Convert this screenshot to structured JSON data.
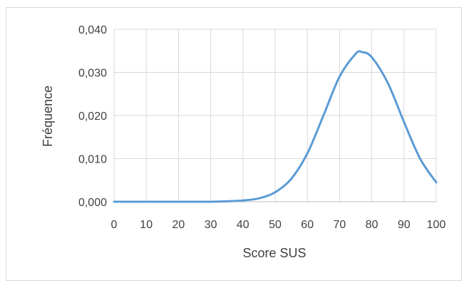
{
  "chart_data": {
    "type": "line",
    "title": "",
    "xlabel": "Score SUS",
    "ylabel": "Fréquence",
    "xlim": [
      0,
      100
    ],
    "ylim": [
      0,
      0.04
    ],
    "grid": true,
    "legend": "none",
    "x_ticks": [
      "0",
      "10",
      "20",
      "30",
      "40",
      "50",
      "60",
      "70",
      "80",
      "90",
      "100"
    ],
    "y_ticks": [
      "0,000",
      "0,010",
      "0,020",
      "0,030",
      "0,040"
    ],
    "series": [
      {
        "color": "#5b9bd5",
        "x": [
          0,
          5,
          10,
          15,
          20,
          25,
          30,
          35,
          40,
          45,
          50,
          55,
          60,
          65,
          70,
          75,
          77,
          80,
          85,
          90,
          95,
          100
        ],
        "y": [
          0.0,
          0.0,
          0.0,
          0.0,
          0.0,
          0.0,
          0.0,
          0.0001,
          0.0003,
          0.0008,
          0.0022,
          0.0053,
          0.0112,
          0.02,
          0.029,
          0.0343,
          0.0347,
          0.0335,
          0.0275,
          0.0185,
          0.01,
          0.0045
        ]
      }
    ]
  }
}
